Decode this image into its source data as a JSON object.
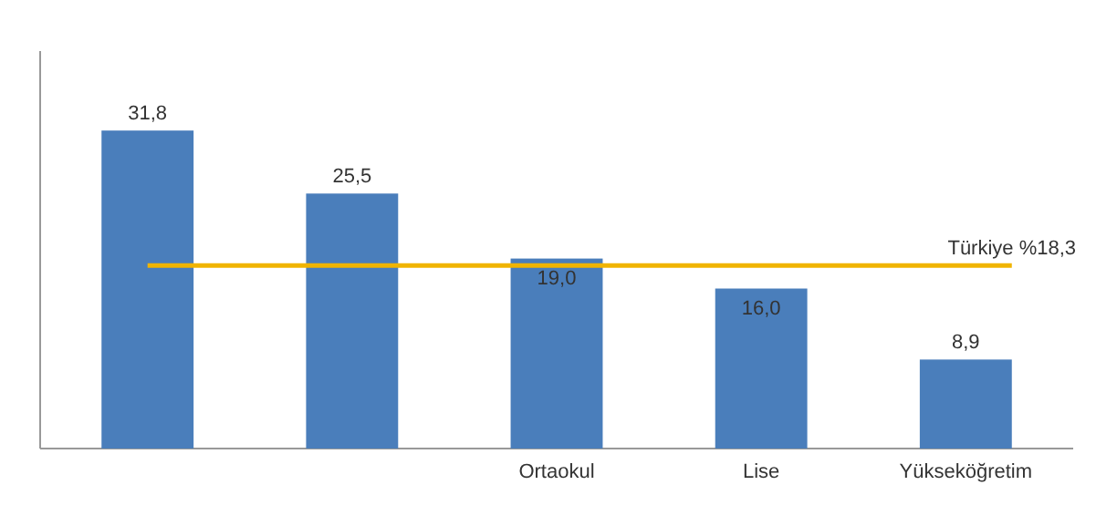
{
  "chart_data": {
    "type": "bar",
    "categories": [
      null,
      null,
      "Ortaokul",
      "Lise",
      "Yükseköğretim"
    ],
    "values": [
      31.8,
      25.5,
      19.0,
      16.0,
      8.9
    ],
    "value_labels": [
      "31,8",
      "25,5",
      "19,0",
      "16,0",
      "8,9"
    ],
    "color": "#4a7ebb",
    "ref_lines": [
      {
        "axis": "y",
        "value": 18.3,
        "label": "Türkiye %18,3",
        "color": "#f0b400"
      }
    ]
  }
}
